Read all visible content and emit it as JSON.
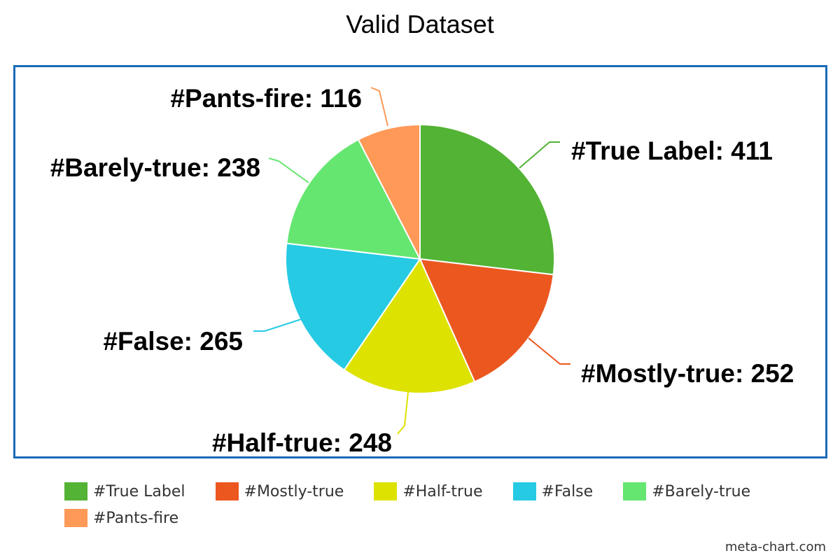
{
  "chart_data": {
    "type": "pie",
    "title": "Valid Dataset",
    "slices": [
      {
        "label": "#True Label",
        "value": 411,
        "color": "#52b334",
        "data_label": "#True Label: 411"
      },
      {
        "label": "#Mostly-true",
        "value": 252,
        "color": "#ec5720",
        "data_label": "#Mostly-true: 252"
      },
      {
        "label": "#Half-true",
        "value": 248,
        "color": "#dde200",
        "data_label": "#Half-true: 248"
      },
      {
        "label": "#False",
        "value": 265,
        "color": "#26cae3",
        "data_label": "#False: 265"
      },
      {
        "label": "#Barely-true",
        "value": 238,
        "color": "#65e670",
        "data_label": "#Barely-true: 238"
      },
      {
        "label": "#Pants-fire",
        "value": 116,
        "color": "#fe9957",
        "data_label": "#Pants-fire: 116"
      }
    ],
    "legend": "bottom"
  },
  "credit": "meta-chart.com",
  "colors": {
    "frame": "#1a6bb8"
  }
}
